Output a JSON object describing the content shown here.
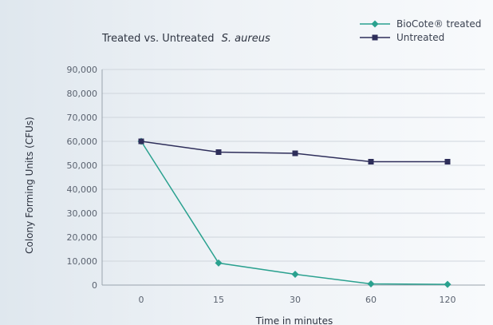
{
  "chart_data": {
    "type": "line",
    "title": "Treated vs. Untreated",
    "title_italic": "S. aureus",
    "xlabel": "Time in minutes",
    "ylabel": "Colony Forming Units (CFUs)",
    "categories": [
      "0",
      "15",
      "30",
      "60",
      "120"
    ],
    "ylim": [
      0,
      90000
    ],
    "yticks": [
      "0",
      "10,000",
      "20,000",
      "30,000",
      "40,000",
      "50,000",
      "60,000",
      "70,000",
      "80,000",
      "90,000"
    ],
    "grid": true,
    "legend_position": "top-right",
    "series": [
      {
        "name": "BioCote® treated",
        "values": [
          60000,
          9200,
          4500,
          500,
          300
        ],
        "color": "#2aa18f",
        "marker": "diamond"
      },
      {
        "name": "Untreated",
        "values": [
          60000,
          55500,
          55000,
          51500,
          51500
        ],
        "color": "#2e2e5a",
        "marker": "square"
      }
    ]
  }
}
